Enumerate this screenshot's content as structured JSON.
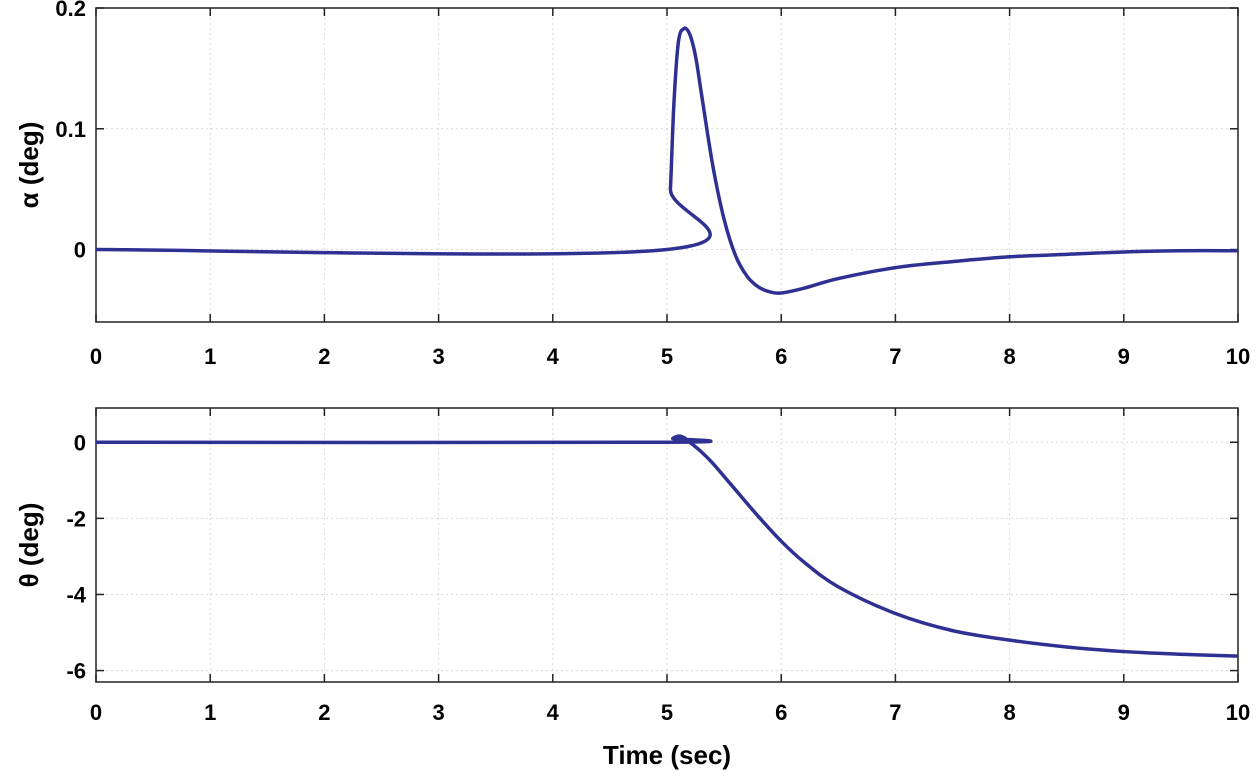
{
  "chart_data": [
    {
      "type": "line",
      "ylabel": "α (deg)",
      "xlabel": "",
      "xlim": [
        0,
        10
      ],
      "ylim": [
        -0.06,
        0.2
      ],
      "xticks": [
        "0",
        "1",
        "2",
        "3",
        "4",
        "5",
        "6",
        "7",
        "8",
        "9",
        "10"
      ],
      "yticks": [
        "0",
        "0.1",
        "0.2"
      ],
      "grid": true,
      "color": "#2e3192",
      "series": [
        {
          "x": [
            0,
            5.0,
            5.03,
            5.06,
            5.1,
            5.15,
            5.2,
            5.25,
            5.3,
            5.4,
            5.5,
            5.6,
            5.7,
            5.8,
            5.9,
            6.0,
            6.2,
            6.5,
            7.0,
            7.5,
            8.0,
            8.5,
            9.0,
            9.5,
            10.0
          ],
          "y": [
            0,
            0,
            0.05,
            0.12,
            0.172,
            0.183,
            0.178,
            0.16,
            0.13,
            0.07,
            0.025,
            -0.005,
            -0.022,
            -0.031,
            -0.035,
            -0.036,
            -0.032,
            -0.024,
            -0.015,
            -0.01,
            -0.006,
            -0.004,
            -0.002,
            -0.001,
            -0.001
          ]
        }
      ]
    },
    {
      "type": "line",
      "ylabel": "θ (deg)",
      "xlabel": "Time (sec)",
      "xlim": [
        0,
        10
      ],
      "ylim": [
        -6.3,
        0.9
      ],
      "xticks": [
        "0",
        "1",
        "2",
        "3",
        "4",
        "5",
        "6",
        "7",
        "8",
        "9",
        "10"
      ],
      "yticks": [
        "0",
        "-2",
        "-4",
        "-6"
      ],
      "grid": true,
      "color": "#2e3192",
      "series": [
        {
          "x": [
            0,
            5.0,
            5.05,
            5.1,
            5.15,
            5.2,
            5.3,
            5.4,
            5.5,
            5.6,
            5.8,
            6.0,
            6.2,
            6.5,
            7.0,
            7.5,
            8.0,
            8.5,
            9.0,
            9.5,
            10.0
          ],
          "y": [
            0,
            0,
            0.1,
            0.16,
            0.12,
            0.0,
            -0.25,
            -0.55,
            -0.9,
            -1.25,
            -1.95,
            -2.6,
            -3.15,
            -3.8,
            -4.5,
            -4.95,
            -5.2,
            -5.38,
            -5.5,
            -5.57,
            -5.62
          ]
        }
      ]
    }
  ]
}
